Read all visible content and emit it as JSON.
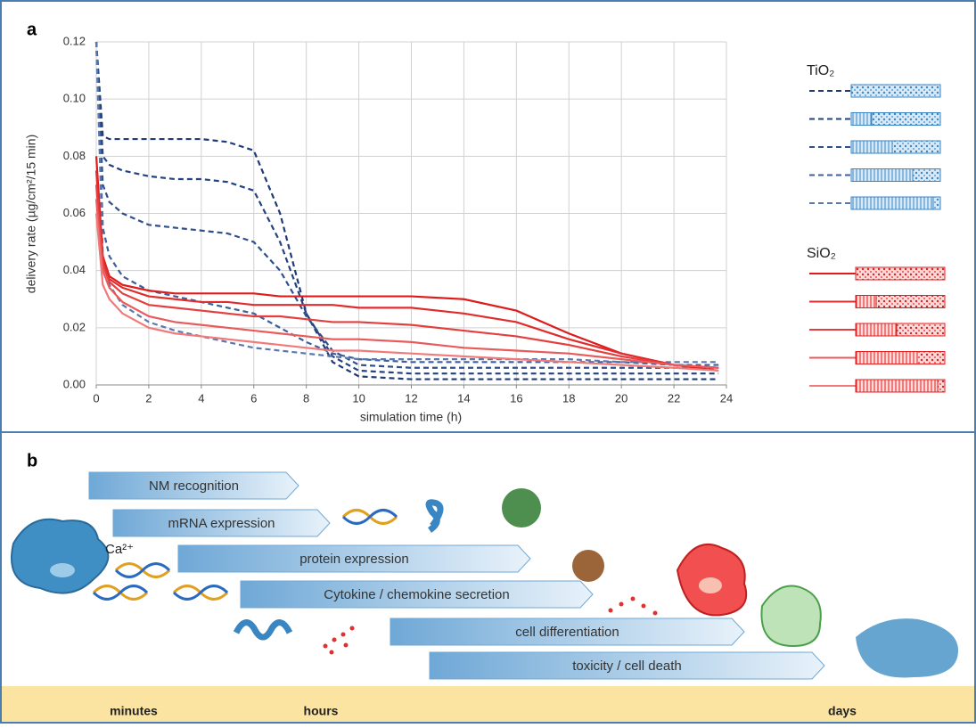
{
  "chart_data": {
    "type": "line",
    "panel_label": "a",
    "x_label": "simulation time (h)",
    "y_label": "delivery rate (µg/cm²/15 min)",
    "x": [
      0,
      0.25,
      0.5,
      1,
      2,
      3,
      4,
      5,
      6,
      7,
      8,
      9,
      10,
      12,
      14,
      16,
      18,
      20,
      22,
      23.7
    ],
    "xlim": [
      0,
      24
    ],
    "xticks": [
      0,
      2,
      4,
      6,
      8,
      10,
      12,
      14,
      16,
      18,
      20,
      22,
      24
    ],
    "ylim": [
      0,
      0.12
    ],
    "yticks": [
      {
        "value": 0,
        "label": "0.00"
      },
      {
        "value": 0.02,
        "label": "0.02"
      },
      {
        "value": 0.04,
        "label": "0.04"
      },
      {
        "value": 0.06,
        "label": "0.06"
      },
      {
        "value": 0.08,
        "label": "0.08"
      },
      {
        "value": 0.1,
        "label": "0.10"
      },
      {
        "value": 0.12,
        "label": "0.12"
      }
    ],
    "grid": true,
    "legend_groups": [
      {
        "title": "TiO₂",
        "dash": true
      },
      {
        "title": "SiO₂",
        "dash": false
      }
    ],
    "series": [
      {
        "color": "#1f3a78",
        "dash": true,
        "values": [
          0.12,
          0.087,
          0.086,
          0.086,
          0.086,
          0.086,
          0.086,
          0.085,
          0.082,
          0.06,
          0.025,
          0.008,
          0.003,
          0.002,
          0.002,
          0.002,
          0.002,
          0.002,
          0.002,
          0.002
        ]
      },
      {
        "color": "#24427f",
        "dash": true,
        "values": [
          0.12,
          0.08,
          0.077,
          0.075,
          0.073,
          0.072,
          0.072,
          0.071,
          0.068,
          0.05,
          0.025,
          0.01,
          0.005,
          0.004,
          0.004,
          0.004,
          0.004,
          0.004,
          0.004,
          0.004
        ]
      },
      {
        "color": "#2f4f8c",
        "dash": true,
        "values": [
          0.12,
          0.07,
          0.064,
          0.06,
          0.056,
          0.055,
          0.054,
          0.053,
          0.05,
          0.04,
          0.024,
          0.012,
          0.007,
          0.006,
          0.006,
          0.006,
          0.006,
          0.006,
          0.006,
          0.006
        ]
      },
      {
        "color": "#3d5f9c",
        "dash": true,
        "values": [
          0.12,
          0.055,
          0.045,
          0.038,
          0.033,
          0.031,
          0.029,
          0.027,
          0.025,
          0.02,
          0.015,
          0.011,
          0.009,
          0.008,
          0.008,
          0.008,
          0.008,
          0.008,
          0.007,
          0.007
        ]
      },
      {
        "color": "#5a78ad",
        "dash": true,
        "values": [
          0.12,
          0.045,
          0.035,
          0.028,
          0.022,
          0.019,
          0.017,
          0.015,
          0.013,
          0.012,
          0.011,
          0.01,
          0.009,
          0.009,
          0.009,
          0.009,
          0.009,
          0.008,
          0.008,
          0.008
        ]
      },
      {
        "color": "#dd1c1c",
        "dash": false,
        "values": [
          0.08,
          0.045,
          0.038,
          0.035,
          0.033,
          0.032,
          0.032,
          0.032,
          0.032,
          0.031,
          0.031,
          0.031,
          0.031,
          0.031,
          0.03,
          0.026,
          0.018,
          0.011,
          0.007,
          0.005
        ]
      },
      {
        "color": "#e02c2c",
        "dash": false,
        "values": [
          0.075,
          0.044,
          0.037,
          0.034,
          0.031,
          0.03,
          0.029,
          0.029,
          0.028,
          0.028,
          0.028,
          0.028,
          0.027,
          0.027,
          0.025,
          0.022,
          0.016,
          0.011,
          0.007,
          0.006
        ]
      },
      {
        "color": "#e43f3f",
        "dash": false,
        "values": [
          0.07,
          0.042,
          0.036,
          0.032,
          0.028,
          0.027,
          0.026,
          0.025,
          0.024,
          0.024,
          0.023,
          0.022,
          0.022,
          0.021,
          0.019,
          0.017,
          0.014,
          0.01,
          0.007,
          0.006
        ]
      },
      {
        "color": "#e95a5a",
        "dash": false,
        "values": [
          0.065,
          0.04,
          0.034,
          0.029,
          0.024,
          0.022,
          0.021,
          0.02,
          0.019,
          0.018,
          0.017,
          0.016,
          0.016,
          0.015,
          0.013,
          0.012,
          0.011,
          0.009,
          0.007,
          0.006
        ]
      },
      {
        "color": "#f07a7a",
        "dash": false,
        "values": [
          0.06,
          0.035,
          0.03,
          0.025,
          0.02,
          0.018,
          0.017,
          0.016,
          0.015,
          0.014,
          0.013,
          0.012,
          0.012,
          0.011,
          0.01,
          0.009,
          0.008,
          0.007,
          0.006,
          0.005
        ]
      }
    ]
  },
  "panel_b": {
    "label": "b",
    "ion": "Ca²⁺",
    "arrows": [
      "NM recognition",
      "mRNA expression",
      "protein expression",
      "Cytokine / chemokine secretion",
      "cell differentiation",
      "toxicity / cell death"
    ],
    "timeline": [
      "minutes",
      "hours",
      "days"
    ]
  }
}
